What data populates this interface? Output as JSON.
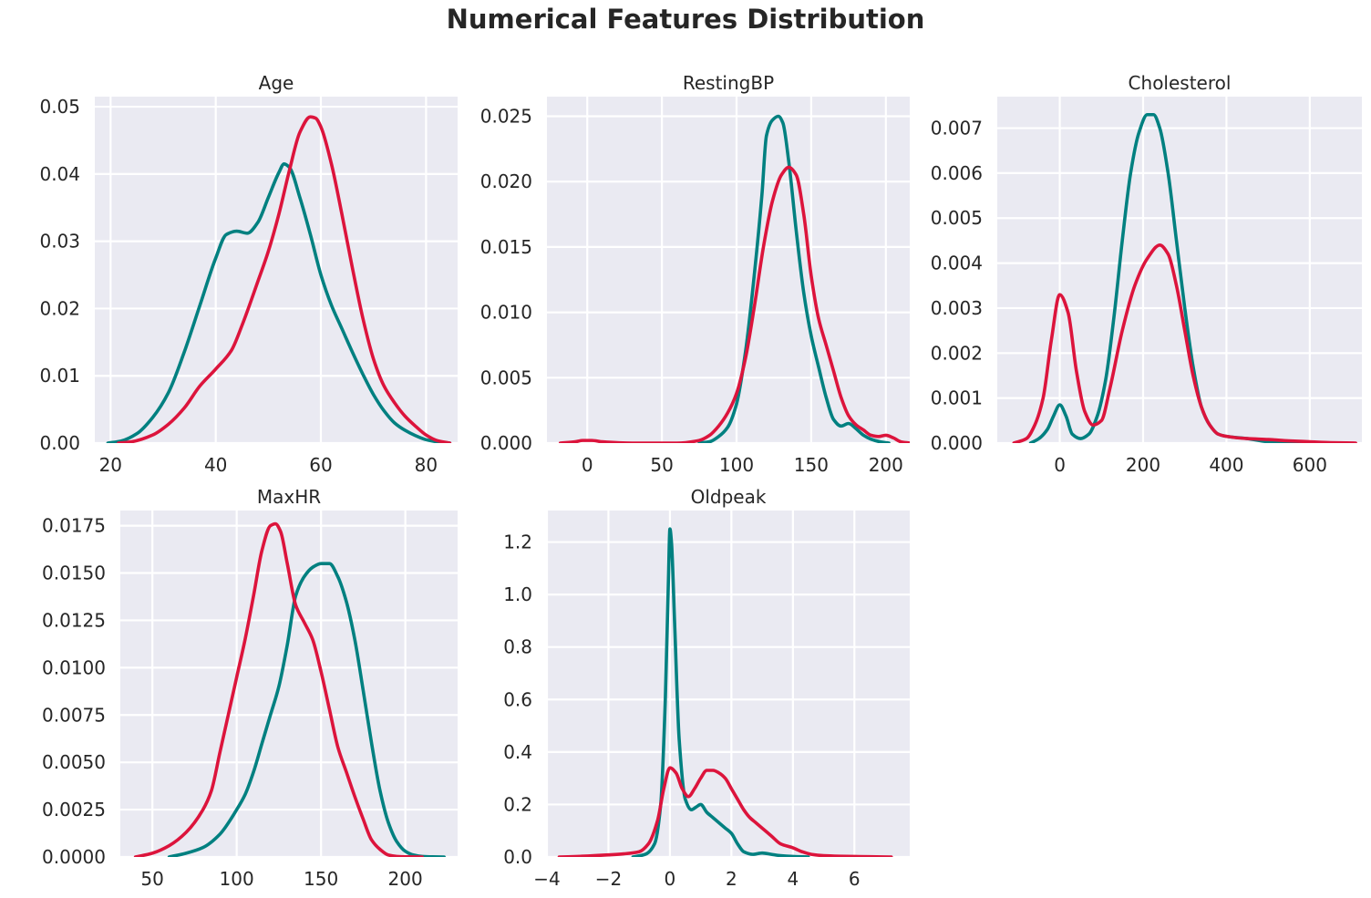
{
  "figure": {
    "title": "Numerical Features Distribution",
    "background": "#ffffff",
    "axes_background": "#eaeaf2",
    "grid_color": "#ffffff",
    "series_colors": [
      "#008080",
      "#dc143c"
    ]
  },
  "chart_data": [
    {
      "type": "line",
      "title": "Age",
      "xlabel": "",
      "ylabel": "",
      "xlim": [
        17,
        86
      ],
      "ylim": [
        0,
        0.0515
      ],
      "xticks": [
        20,
        40,
        60,
        80
      ],
      "xtick_labels": [
        "20",
        "40",
        "60",
        "80"
      ],
      "yticks": [
        0,
        0.01,
        0.02,
        0.03,
        0.04,
        0.05
      ],
      "ytick_labels": [
        "0.00",
        "0.01",
        "0.02",
        "0.03",
        "0.04",
        "0.05"
      ],
      "grid": true,
      "legend": "none",
      "series": [
        {
          "color": "#008080",
          "x": [
            19.5,
            22,
            25,
            28,
            31,
            34,
            37,
            40,
            42,
            44,
            46,
            48,
            50,
            52,
            53,
            54,
            56,
            58,
            60,
            62,
            64,
            66,
            68,
            70,
            72,
            74,
            76,
            78,
            80,
            82,
            84.5
          ],
          "y": [
            0,
            0.0003,
            0.0014,
            0.0038,
            0.0075,
            0.0135,
            0.0205,
            0.0275,
            0.031,
            0.0315,
            0.0312,
            0.0328,
            0.0365,
            0.0402,
            0.0415,
            0.041,
            0.0365,
            0.031,
            0.025,
            0.0205,
            0.017,
            0.0135,
            0.0102,
            0.0072,
            0.0048,
            0.003,
            0.0019,
            0.0011,
            0.0005,
            0.0002,
            0
          ]
        },
        {
          "color": "#dc143c",
          "x": [
            21.5,
            24,
            28,
            31,
            34,
            37,
            40,
            43,
            45,
            48,
            50,
            52,
            54,
            56,
            58,
            59,
            60,
            62,
            64,
            66,
            68,
            70,
            72,
            74,
            76,
            78,
            80,
            82,
            84.5
          ],
          "y": [
            0,
            0.0002,
            0.0012,
            0.0028,
            0.0052,
            0.0085,
            0.011,
            0.0138,
            0.0175,
            0.024,
            0.0285,
            0.034,
            0.0405,
            0.0462,
            0.0485,
            0.0483,
            0.047,
            0.0415,
            0.034,
            0.026,
            0.0185,
            0.0125,
            0.0085,
            0.006,
            0.004,
            0.0025,
            0.0012,
            0.0004,
            0
          ]
        }
      ]
    },
    {
      "type": "line",
      "title": "RestingBP",
      "xlabel": "",
      "ylabel": "",
      "xlim": [
        -27,
        216
      ],
      "ylim": [
        0,
        0.0265
      ],
      "xticks": [
        0,
        50,
        100,
        150,
        200
      ],
      "xtick_labels": [
        "0",
        "50",
        "100",
        "150",
        "200"
      ],
      "yticks": [
        0,
        0.005,
        0.01,
        0.015,
        0.02,
        0.025
      ],
      "ytick_labels": [
        "0.000",
        "0.005",
        "0.010",
        "0.015",
        "0.020",
        "0.025"
      ],
      "grid": true,
      "legend": "none",
      "series": [
        {
          "color": "#008080",
          "x": [
            75,
            82,
            88,
            94,
            100,
            106,
            112,
            117,
            120,
            124,
            128,
            131,
            135,
            140,
            145,
            150,
            155,
            160,
            165,
            170,
            175,
            180,
            185,
            190,
            196,
            202
          ],
          "y": [
            0,
            0.0001,
            0.0005,
            0.0012,
            0.003,
            0.007,
            0.013,
            0.019,
            0.0235,
            0.0247,
            0.025,
            0.0245,
            0.0215,
            0.0162,
            0.0115,
            0.0082,
            0.0058,
            0.0035,
            0.0018,
            0.0013,
            0.0015,
            0.0011,
            0.0006,
            0.0003,
            0.0001,
            0
          ]
        },
        {
          "color": "#dc143c",
          "x": [
            -18,
            -8,
            -3,
            0,
            3,
            10,
            30,
            60,
            75,
            82,
            88,
            94,
            100,
            106,
            112,
            118,
            124,
            130,
            135,
            140,
            145,
            150,
            155,
            160,
            165,
            170,
            175,
            180,
            185,
            190,
            195,
            200,
            205,
            210,
            216
          ],
          "y": [
            0,
            0.0001,
            0.0002,
            0.0002,
            0.0002,
            0.0001,
            0,
            0,
            0.0002,
            0.0006,
            0.0013,
            0.0023,
            0.0038,
            0.0065,
            0.0105,
            0.015,
            0.0185,
            0.0205,
            0.0211,
            0.0205,
            0.0175,
            0.0128,
            0.0095,
            0.0075,
            0.0055,
            0.0035,
            0.0021,
            0.0014,
            0.001,
            0.0006,
            0.0005,
            0.0006,
            0.0004,
            0.0001,
            0
          ]
        }
      ]
    },
    {
      "type": "line",
      "title": "Cholesterol",
      "xlabel": "",
      "ylabel": "",
      "xlim": [
        -150,
        725
      ],
      "ylim": [
        0,
        0.0077
      ],
      "xticks": [
        0,
        200,
        400,
        600
      ],
      "xtick_labels": [
        "0",
        "200",
        "400",
        "600"
      ],
      "yticks": [
        0,
        0.001,
        0.002,
        0.003,
        0.004,
        0.005,
        0.006,
        0.007
      ],
      "ytick_labels": [
        "0.000",
        "0.001",
        "0.002",
        "0.003",
        "0.004",
        "0.005",
        "0.006",
        "0.007"
      ],
      "grid": true,
      "legend": "none",
      "series": [
        {
          "color": "#008080",
          "x": [
            -70,
            -50,
            -30,
            -15,
            0,
            15,
            30,
            50,
            70,
            90,
            110,
            130,
            150,
            170,
            190,
            210,
            225,
            240,
            260,
            280,
            300,
            320,
            340,
            360,
            380,
            400,
            450,
            500,
            550,
            600
          ],
          "y": [
            0,
            0.0001,
            0.0003,
            0.0006,
            0.00085,
            0.0006,
            0.0002,
            0.0001,
            0.0002,
            0.0006,
            0.0014,
            0.0028,
            0.0045,
            0.006,
            0.0069,
            0.0073,
            0.0073,
            0.007,
            0.006,
            0.0045,
            0.003,
            0.0017,
            0.0008,
            0.0004,
            0.0002,
            0.00015,
            0.0001,
            3e-05,
            1e-05,
            0
          ]
        },
        {
          "color": "#dc143c",
          "x": [
            -110,
            -80,
            -60,
            -40,
            -20,
            0,
            20,
            40,
            60,
            80,
            100,
            120,
            150,
            180,
            210,
            240,
            260,
            280,
            300,
            320,
            340,
            360,
            380,
            400,
            450,
            500,
            550,
            600,
            650,
            710
          ],
          "y": [
            0,
            0.0001,
            0.0004,
            0.001,
            0.0023,
            0.0033,
            0.0029,
            0.0016,
            0.0007,
            0.0004,
            0.0005,
            0.0012,
            0.0025,
            0.0035,
            0.0041,
            0.0044,
            0.0042,
            0.0035,
            0.0025,
            0.0015,
            0.0008,
            0.0004,
            0.0002,
            0.00015,
            0.0001,
            8e-05,
            5e-05,
            3e-05,
            1e-05,
            0
          ]
        }
      ]
    },
    {
      "type": "line",
      "title": "MaxHR",
      "xlabel": "",
      "ylabel": "",
      "xlim": [
        31,
        231
      ],
      "ylim": [
        0,
        0.0183
      ],
      "xticks": [
        50,
        100,
        150,
        200
      ],
      "xtick_labels": [
        "50",
        "100",
        "150",
        "200"
      ],
      "yticks": [
        0,
        0.0025,
        0.005,
        0.0075,
        0.01,
        0.0125,
        0.015,
        0.0175
      ],
      "ytick_labels": [
        "0.0000",
        "0.0025",
        "0.0050",
        "0.0075",
        "0.0100",
        "0.0125",
        "0.0150",
        "0.0175"
      ],
      "grid": true,
      "legend": "none",
      "series": [
        {
          "color": "#008080",
          "x": [
            60,
            70,
            80,
            90,
            100,
            105,
            110,
            115,
            120,
            125,
            130,
            135,
            140,
            145,
            150,
            155,
            160,
            165,
            170,
            175,
            180,
            185,
            190,
            195,
            200,
            205,
            210,
            216,
            223
          ],
          "y": [
            0,
            0.0002,
            0.0005,
            0.0012,
            0.0025,
            0.0033,
            0.0045,
            0.006,
            0.0075,
            0.009,
            0.0112,
            0.0138,
            0.0148,
            0.0153,
            0.0155,
            0.0155,
            0.0148,
            0.0135,
            0.0115,
            0.0088,
            0.006,
            0.0035,
            0.0018,
            0.0008,
            0.0003,
            0.0001,
            3e-05,
            1e-05,
            0
          ]
        },
        {
          "color": "#dc143c",
          "x": [
            40,
            50,
            60,
            70,
            80,
            85,
            90,
            95,
            100,
            105,
            110,
            115,
            120,
            123,
            126,
            130,
            135,
            140,
            145,
            150,
            155,
            160,
            165,
            170,
            175,
            180,
            185,
            190,
            195,
            200,
            205,
            210
          ],
          "y": [
            0,
            0.0002,
            0.0006,
            0.0013,
            0.0025,
            0.0035,
            0.0055,
            0.0075,
            0.0095,
            0.0115,
            0.0138,
            0.0162,
            0.0175,
            0.0176,
            0.0172,
            0.0155,
            0.0133,
            0.0124,
            0.0115,
            0.0098,
            0.0078,
            0.0058,
            0.0045,
            0.0032,
            0.002,
            0.0009,
            0.0004,
            0.0001,
            3e-05,
            1e-05,
            5e-06,
            0
          ]
        }
      ]
    },
    {
      "type": "line",
      "title": "Oldpeak",
      "xlabel": "",
      "ylabel": "",
      "xlim": [
        -4,
        7.8
      ],
      "ylim": [
        0,
        1.32
      ],
      "xticks": [
        -4,
        -2,
        0,
        2,
        4,
        6
      ],
      "xtick_labels": [
        "−4",
        "−2",
        "0",
        "2",
        "4",
        "6"
      ],
      "yticks": [
        0,
        0.2,
        0.4,
        0.6,
        0.8,
        1.0,
        1.2
      ],
      "ytick_labels": [
        "0.0",
        "0.2",
        "0.4",
        "0.6",
        "0.8",
        "1.0",
        "1.2"
      ],
      "grid": true,
      "legend": "none",
      "series": [
        {
          "color": "#008080",
          "x": [
            -1.2,
            -0.8,
            -0.5,
            -0.3,
            -0.15,
            -0.05,
            0,
            0.05,
            0.15,
            0.3,
            0.5,
            0.7,
            0.85,
            1.0,
            1.2,
            1.4,
            1.6,
            1.8,
            2.0,
            2.2,
            2.4,
            2.7,
            3.0,
            3.3,
            3.6,
            4.0,
            4.5
          ],
          "y": [
            0,
            0.01,
            0.05,
            0.2,
            0.6,
            1.05,
            1.25,
            1.2,
            0.9,
            0.45,
            0.22,
            0.18,
            0.19,
            0.2,
            0.17,
            0.15,
            0.13,
            0.11,
            0.09,
            0.05,
            0.02,
            0.01,
            0.015,
            0.01,
            0.005,
            0.002,
            0
          ]
        },
        {
          "color": "#dc143c",
          "x": [
            -3.6,
            -3.0,
            -2.0,
            -1.5,
            -1.0,
            -0.7,
            -0.4,
            -0.2,
            0,
            0.2,
            0.4,
            0.6,
            0.8,
            1.0,
            1.2,
            1.4,
            1.6,
            1.8,
            2.0,
            2.2,
            2.4,
            2.6,
            2.8,
            3.0,
            3.3,
            3.6,
            4.0,
            4.3,
            4.6,
            5.0,
            5.5,
            6.0,
            6.5,
            7.2
          ],
          "y": [
            0,
            0.002,
            0.008,
            0.012,
            0.02,
            0.05,
            0.14,
            0.26,
            0.34,
            0.32,
            0.26,
            0.23,
            0.26,
            0.3,
            0.33,
            0.33,
            0.32,
            0.3,
            0.26,
            0.22,
            0.18,
            0.15,
            0.13,
            0.11,
            0.08,
            0.05,
            0.035,
            0.02,
            0.01,
            0.005,
            0.003,
            0.002,
            0.001,
            0
          ]
        }
      ]
    }
  ]
}
